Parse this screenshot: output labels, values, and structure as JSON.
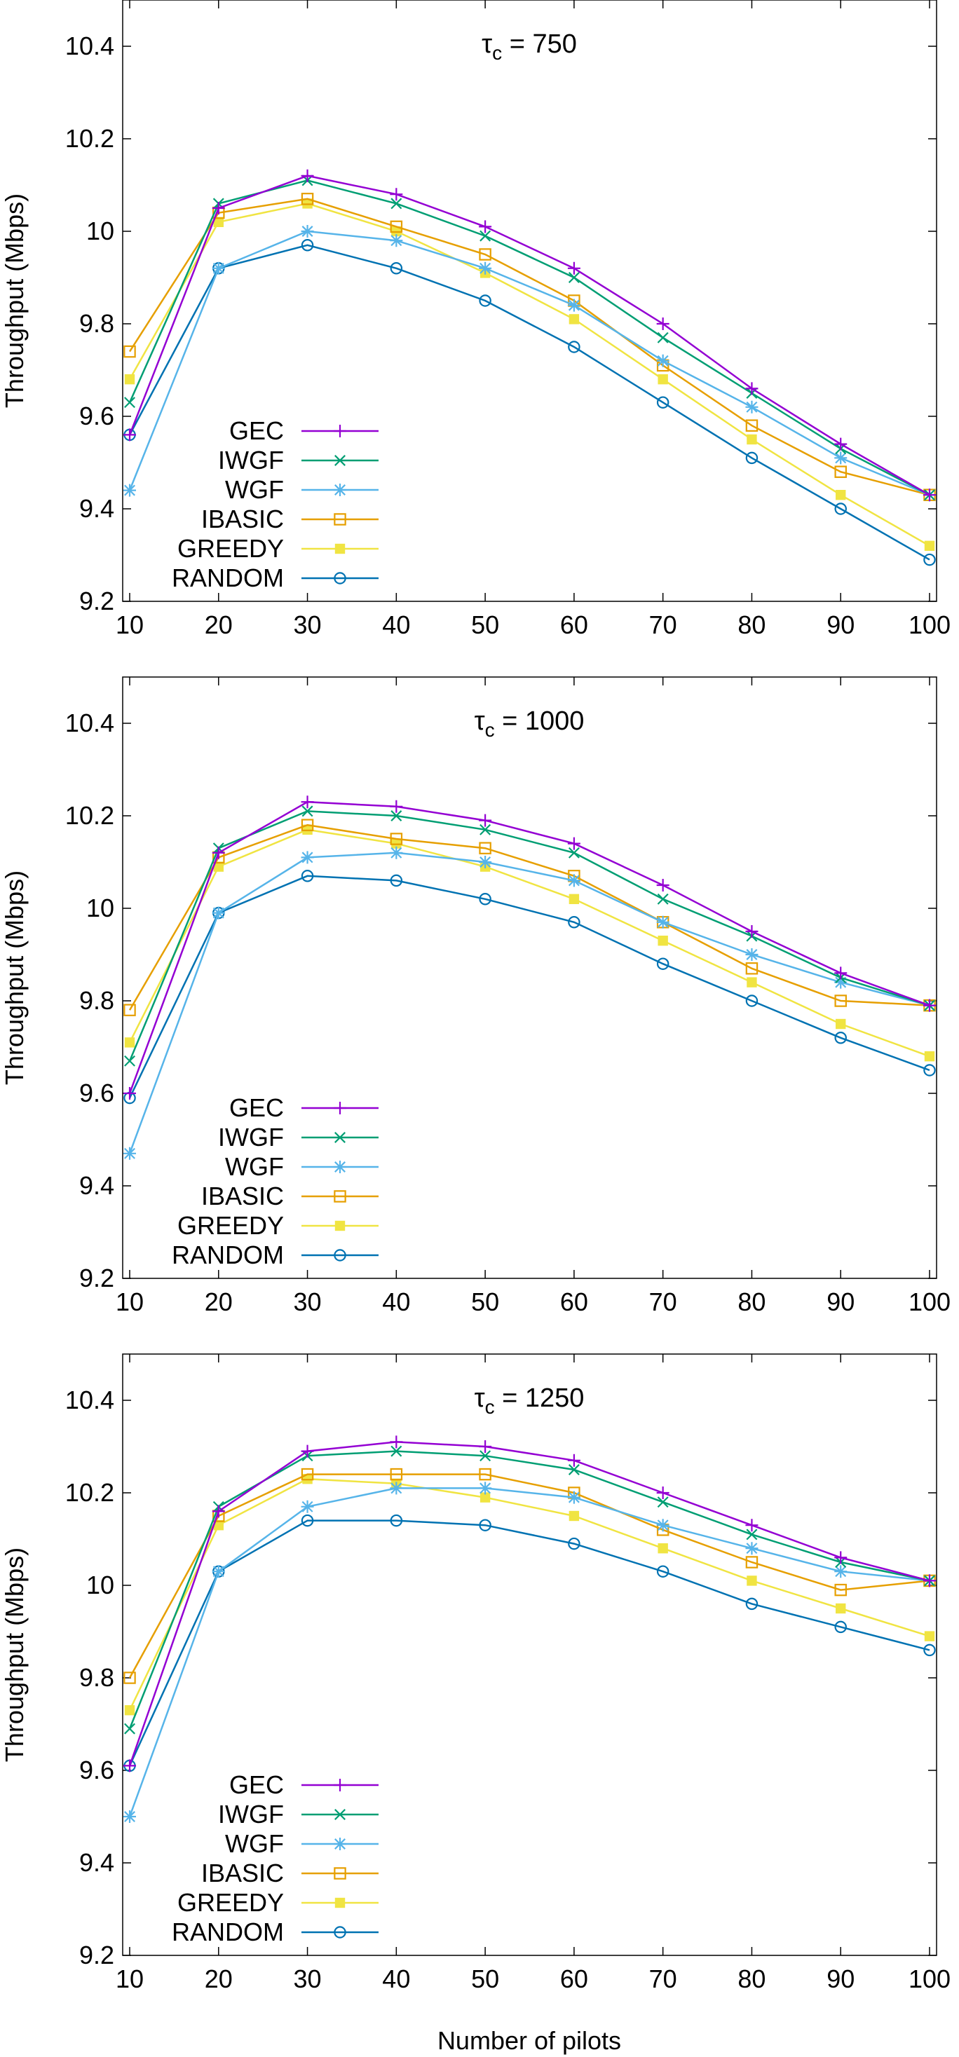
{
  "figure": {
    "xlabel": "Number of pilots",
    "ylabel": "Throughput (Mbps)"
  },
  "legend_order": [
    "GEC",
    "IWGF",
    "WGF",
    "IBASIC",
    "GREEDY",
    "RANDOM"
  ],
  "series_style": {
    "GEC": {
      "color": "#9400D3",
      "marker": "plus"
    },
    "IWGF": {
      "color": "#009E73",
      "marker": "cross"
    },
    "WGF": {
      "color": "#56B4E9",
      "marker": "star"
    },
    "IBASIC": {
      "color": "#E69F00",
      "marker": "square-open"
    },
    "GREEDY": {
      "color": "#F0E442",
      "marker": "square-filled"
    },
    "RANDOM": {
      "color": "#0072B2",
      "marker": "circle-open"
    }
  },
  "chart_data": [
    {
      "type": "line",
      "title": "τ",
      "title_sub": "c",
      "title_value": "= 750",
      "xlabel": "",
      "ylabel": "Throughput (Mbps)",
      "x": [
        10,
        20,
        30,
        40,
        50,
        60,
        70,
        80,
        90,
        100
      ],
      "xticks": [
        "10",
        "20",
        "30",
        "40",
        "50",
        "60",
        "70",
        "80",
        "90",
        "100"
      ],
      "ylim": [
        9.2,
        10.5
      ],
      "yticks": [
        "9.2",
        "9.4",
        "9.6",
        "9.8",
        "10",
        "10.2",
        "10.4"
      ],
      "series": [
        {
          "name": "GEC",
          "values": [
            9.56,
            10.05,
            10.12,
            10.08,
            10.01,
            9.92,
            9.8,
            9.66,
            9.54,
            9.43
          ]
        },
        {
          "name": "IWGF",
          "values": [
            9.63,
            10.06,
            10.11,
            10.06,
            9.99,
            9.9,
            9.77,
            9.65,
            9.53,
            9.43
          ]
        },
        {
          "name": "WGF",
          "values": [
            9.44,
            9.92,
            10.0,
            9.98,
            9.92,
            9.84,
            9.72,
            9.62,
            9.51,
            9.43
          ]
        },
        {
          "name": "IBASIC",
          "values": [
            9.74,
            10.04,
            10.07,
            10.01,
            9.95,
            9.85,
            9.71,
            9.58,
            9.48,
            9.43
          ]
        },
        {
          "name": "GREEDY",
          "values": [
            9.68,
            10.02,
            10.06,
            10.0,
            9.91,
            9.81,
            9.68,
            9.55,
            9.43,
            9.32
          ]
        },
        {
          "name": "RANDOM",
          "values": [
            9.56,
            9.92,
            9.97,
            9.92,
            9.85,
            9.75,
            9.63,
            9.51,
            9.4,
            9.29
          ]
        }
      ]
    },
    {
      "type": "line",
      "title": "τ",
      "title_sub": "c",
      "title_value": "= 1000",
      "xlabel": "",
      "ylabel": "Throughput (Mbps)",
      "x": [
        10,
        20,
        30,
        40,
        50,
        60,
        70,
        80,
        90,
        100
      ],
      "xticks": [
        "10",
        "20",
        "30",
        "40",
        "50",
        "60",
        "70",
        "80",
        "90",
        "100"
      ],
      "ylim": [
        9.2,
        10.5
      ],
      "yticks": [
        "9.2",
        "9.4",
        "9.6",
        "9.8",
        "10",
        "10.2",
        "10.4"
      ],
      "series": [
        {
          "name": "GEC",
          "values": [
            9.6,
            10.12,
            10.23,
            10.22,
            10.19,
            10.14,
            10.05,
            9.95,
            9.86,
            9.79
          ]
        },
        {
          "name": "IWGF",
          "values": [
            9.67,
            10.13,
            10.21,
            10.2,
            10.17,
            10.12,
            10.02,
            9.94,
            9.85,
            9.79
          ]
        },
        {
          "name": "WGF",
          "values": [
            9.47,
            9.99,
            10.11,
            10.12,
            10.1,
            10.06,
            9.97,
            9.9,
            9.84,
            9.79
          ]
        },
        {
          "name": "IBASIC",
          "values": [
            9.78,
            10.11,
            10.18,
            10.15,
            10.13,
            10.07,
            9.97,
            9.87,
            9.8,
            9.79
          ]
        },
        {
          "name": "GREEDY",
          "values": [
            9.71,
            10.09,
            10.17,
            10.14,
            10.09,
            10.02,
            9.93,
            9.84,
            9.75,
            9.68
          ]
        },
        {
          "name": "RANDOM",
          "values": [
            9.59,
            9.99,
            10.07,
            10.06,
            10.02,
            9.97,
            9.88,
            9.8,
            9.72,
            9.65
          ]
        }
      ]
    },
    {
      "type": "line",
      "title": "τ",
      "title_sub": "c",
      "title_value": "= 1250",
      "xlabel": "Number of pilots",
      "ylabel": "Throughput (Mbps)",
      "x": [
        10,
        20,
        30,
        40,
        50,
        60,
        70,
        80,
        90,
        100
      ],
      "xticks": [
        "10",
        "20",
        "30",
        "40",
        "50",
        "60",
        "70",
        "80",
        "90",
        "100"
      ],
      "ylim": [
        9.2,
        10.5
      ],
      "yticks": [
        "9.2",
        "9.4",
        "9.6",
        "9.8",
        "10",
        "10.2",
        "10.4"
      ],
      "series": [
        {
          "name": "GEC",
          "values": [
            9.61,
            10.16,
            10.29,
            10.31,
            10.3,
            10.27,
            10.2,
            10.13,
            10.06,
            10.01
          ]
        },
        {
          "name": "IWGF",
          "values": [
            9.69,
            10.17,
            10.28,
            10.29,
            10.28,
            10.25,
            10.18,
            10.11,
            10.05,
            10.01
          ]
        },
        {
          "name": "WGF",
          "values": [
            9.5,
            10.03,
            10.17,
            10.21,
            10.21,
            10.19,
            10.13,
            10.08,
            10.03,
            10.01
          ]
        },
        {
          "name": "IBASIC",
          "values": [
            9.8,
            10.15,
            10.24,
            10.24,
            10.24,
            10.2,
            10.12,
            10.05,
            9.99,
            10.01
          ]
        },
        {
          "name": "GREEDY",
          "values": [
            9.73,
            10.13,
            10.23,
            10.22,
            10.19,
            10.15,
            10.08,
            10.01,
            9.95,
            9.89
          ]
        },
        {
          "name": "RANDOM",
          "values": [
            9.61,
            10.03,
            10.14,
            10.14,
            10.13,
            10.09,
            10.03,
            9.96,
            9.91,
            9.86
          ]
        }
      ]
    }
  ]
}
